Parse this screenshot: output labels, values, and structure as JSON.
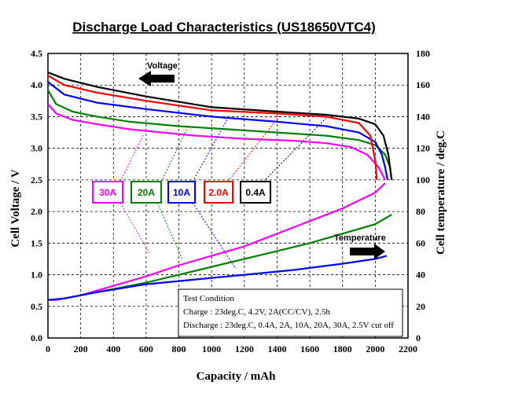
{
  "chart_data": {
    "type": "line",
    "title": "Discharge Load Characteristics (US18650VTC4)",
    "xlabel": "Capacity / mAh",
    "ylabel": "Cell Voltage / V",
    "y2label": "Cell temperature / deg.C",
    "xlim": [
      0,
      2200
    ],
    "ylim": [
      0,
      4.5
    ],
    "y2lim": [
      0,
      180
    ],
    "grid": true,
    "x_ticks": [
      "0",
      "200",
      "400",
      "600",
      "800",
      "1000",
      "1200",
      "1400",
      "1600",
      "1800",
      "2000",
      "2200"
    ],
    "y_ticks": [
      "0.0",
      "0.5",
      "1.0",
      "1.5",
      "2.0",
      "2.5",
      "3.0",
      "3.5",
      "4.0",
      "4.5"
    ],
    "y2_ticks": [
      "0",
      "20",
      "40",
      "60",
      "80",
      "100",
      "120",
      "140",
      "160",
      "180"
    ],
    "annotations": {
      "voltage": "Voltage",
      "temperature": "Temperature"
    },
    "test_condition": {
      "heading": "Test Condition",
      "charge": "Charge : 23deg.C, 4.2V, 2A(CC/CV), 2.5h",
      "discharge": "Discharge : 23deg.C, 0.4A, 2A, 10A, 20A, 30A, 2.5V cut off"
    },
    "series": [
      {
        "name": "30A",
        "color": "#ff00ff",
        "axis": "voltage",
        "x": [
          0,
          50,
          150,
          300,
          500,
          700,
          900,
          1200,
          1500,
          1700,
          1850,
          1950,
          2020,
          2060
        ],
        "y": [
          3.7,
          3.55,
          3.45,
          3.38,
          3.3,
          3.25,
          3.2,
          3.15,
          3.12,
          3.08,
          3.02,
          2.9,
          2.7,
          2.5
        ]
      },
      {
        "name": "20A",
        "color": "#008000",
        "axis": "voltage",
        "x": [
          0,
          50,
          150,
          300,
          500,
          800,
          1100,
          1400,
          1700,
          1900,
          2000,
          2060,
          2090,
          2100
        ],
        "y": [
          3.92,
          3.7,
          3.58,
          3.5,
          3.42,
          3.35,
          3.3,
          3.25,
          3.2,
          3.13,
          3.05,
          2.9,
          2.7,
          2.5
        ]
      },
      {
        "name": "10A",
        "color": "#0000ff",
        "axis": "voltage",
        "x": [
          0,
          100,
          300,
          600,
          1000,
          1400,
          1700,
          1900,
          2000,
          2040,
          2060,
          2075
        ],
        "y": [
          4.05,
          3.85,
          3.72,
          3.62,
          3.5,
          3.42,
          3.35,
          3.25,
          3.1,
          2.9,
          2.7,
          2.5
        ]
      },
      {
        "name": "2.0A",
        "color": "#ff0000",
        "axis": "voltage",
        "x": [
          0,
          100,
          300,
          600,
          1000,
          1400,
          1700,
          1900,
          1970,
          2000,
          2010
        ],
        "y": [
          4.15,
          4.0,
          3.88,
          3.75,
          3.6,
          3.55,
          3.5,
          3.4,
          3.2,
          2.8,
          2.5
        ]
      },
      {
        "name": "0.4A",
        "color": "#000000",
        "axis": "voltage",
        "x": [
          0,
          100,
          300,
          600,
          1000,
          1400,
          1700,
          1900,
          2000,
          2050,
          2080,
          2100
        ],
        "y": [
          4.2,
          4.1,
          3.97,
          3.82,
          3.65,
          3.58,
          3.53,
          3.47,
          3.38,
          3.2,
          2.9,
          2.5
        ]
      },
      {
        "name": "30A",
        "color": "#ff00ff",
        "axis": "temperature",
        "x": [
          0,
          50,
          100,
          200,
          400,
          600,
          800,
          1000,
          1200,
          1400,
          1600,
          1800,
          2000,
          2060
        ],
        "y": [
          24,
          24,
          25,
          27,
          33,
          39,
          46,
          52,
          58,
          66,
          74,
          82,
          92,
          98
        ]
      },
      {
        "name": "20A",
        "color": "#008000",
        "axis": "temperature",
        "x": [
          0,
          100,
          200,
          400,
          600,
          800,
          1000,
          1200,
          1400,
          1600,
          1800,
          2000,
          2100
        ],
        "y": [
          24,
          25,
          27,
          31,
          35,
          40,
          45,
          50,
          55,
          60,
          66,
          72,
          78
        ]
      },
      {
        "name": "10A",
        "color": "#0000ff",
        "axis": "temperature",
        "x": [
          0,
          100,
          300,
          600,
          900,
          1200,
          1500,
          1800,
          2000,
          2070
        ],
        "y": [
          24,
          25,
          29,
          34,
          37,
          40,
          43,
          47,
          50,
          52
        ]
      }
    ]
  }
}
